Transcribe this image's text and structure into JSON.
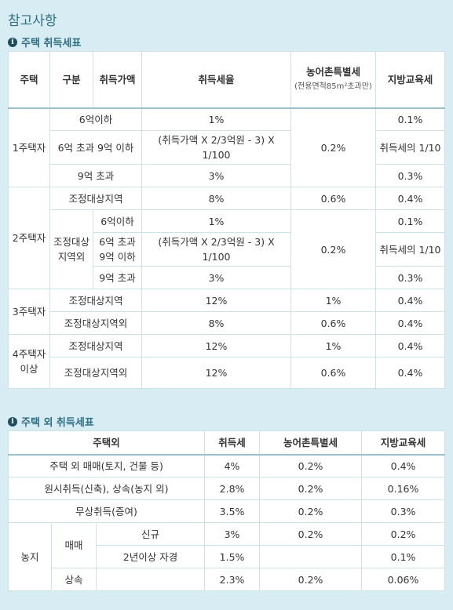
{
  "title": "참고사항",
  "housing": {
    "heading": "주택 취득세표",
    "header": [
      "주택",
      "구분",
      "취득가액",
      "취득세율",
      "농어촌특별세",
      "(전용면적85m²초과만)",
      "지방교육세"
    ],
    "rows": [
      [
        "1주택자",
        "6억이하",
        "1%",
        "0.2%",
        "0.1%"
      ],
      [
        "6억 초과 9억 이하",
        "(취득가액 X 2/3억원 - 3) X 1/100",
        "취득세의 1/10"
      ],
      [
        "9억 초과",
        "3%",
        "0.3%"
      ],
      [
        "2주택자",
        "조정대상지역",
        "8%",
        "0.6%",
        "0.4%"
      ],
      [
        "조정대상지역외",
        "6억이하",
        "1%",
        "0.2%",
        "0.1%"
      ],
      [
        "6억 초과 9억 이하",
        "(취득가액 X 2/3억원 - 3) X 1/100",
        "취득세의 1/10"
      ],
      [
        "9억 초과",
        "3%",
        "0.3%"
      ],
      [
        "3주택자",
        "조정대상지역",
        "12%",
        "1%",
        "0.4%"
      ],
      [
        "조정대상지역외",
        "8%",
        "0.6%",
        "0.4%"
      ],
      [
        "4주택자 이상",
        "조정대상지역",
        "12%",
        "1%",
        "0.4%"
      ],
      [
        "조정대상지역외",
        "12%",
        "0.6%",
        "0.4%"
      ]
    ]
  },
  "non_housing": {
    "heading": "주택 외 취득세표",
    "header": [
      "주택외",
      "취득세",
      "농어촌특별세",
      "지방교육세"
    ],
    "rows": [
      [
        "주택 외 매매(토지, 건물 등)",
        "4%",
        "0.2%",
        "0.4%"
      ],
      [
        "원시취득(신축), 상속(농지 외)",
        "2.8%",
        "0.2%",
        "0.16%"
      ],
      [
        "무상취득(증여)",
        "3.5%",
        "0.2%",
        "0.3%"
      ],
      [
        "농지",
        "매매",
        "신규",
        "3%",
        "0.2%",
        "0.2%"
      ],
      [
        "2년이상 자경",
        "1.5%",
        "0.1%"
      ],
      [
        "상속",
        "2.3%",
        "0.2%",
        "0.06%"
      ]
    ]
  }
}
